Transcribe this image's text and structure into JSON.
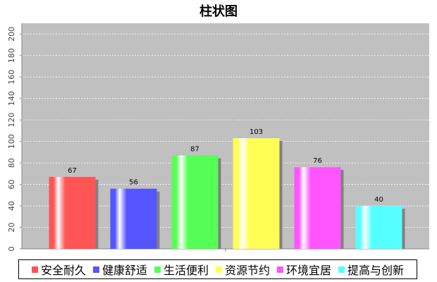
{
  "chart_data": {
    "type": "bar",
    "title": "柱状图",
    "categories": [
      "安全耐久",
      "健康舒适",
      "生活便利",
      "资源节约",
      "环境宜居",
      "提高与创新"
    ],
    "values": [
      67,
      56,
      87,
      103,
      76,
      40
    ],
    "colors": [
      "#ff5555",
      "#5555ff",
      "#55ff55",
      "#ffff55",
      "#ff55ff",
      "#55ffff"
    ],
    "xlabel": "",
    "ylabel": "",
    "ylim": [
      0,
      210
    ],
    "yticks": [
      0,
      20,
      40,
      60,
      80,
      100,
      120,
      140,
      160,
      180,
      200
    ],
    "grid": true,
    "legend_position": "bottom",
    "plot_background": "#c0c0c0"
  }
}
